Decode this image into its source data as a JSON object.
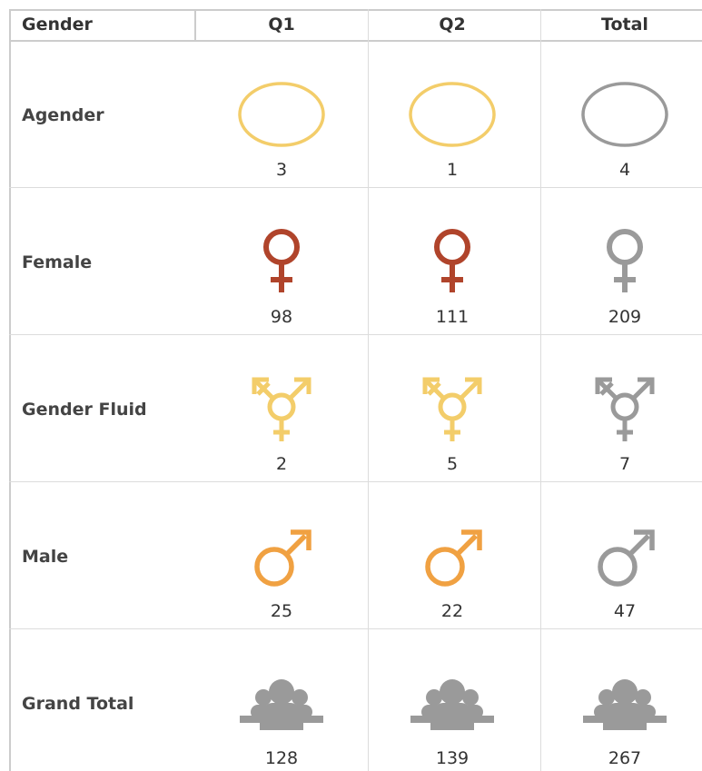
{
  "table": {
    "header": [
      "Gender",
      "Q1",
      "Q2",
      "Total"
    ],
    "rows": [
      [
        "Agender",
        3,
        1,
        4
      ],
      [
        "Female",
        98,
        111,
        209
      ],
      [
        "Gender Fluid",
        2,
        5,
        7
      ],
      [
        "Male",
        25,
        22,
        47
      ],
      [
        "Grand Total",
        128,
        139,
        267
      ]
    ]
  }
}
